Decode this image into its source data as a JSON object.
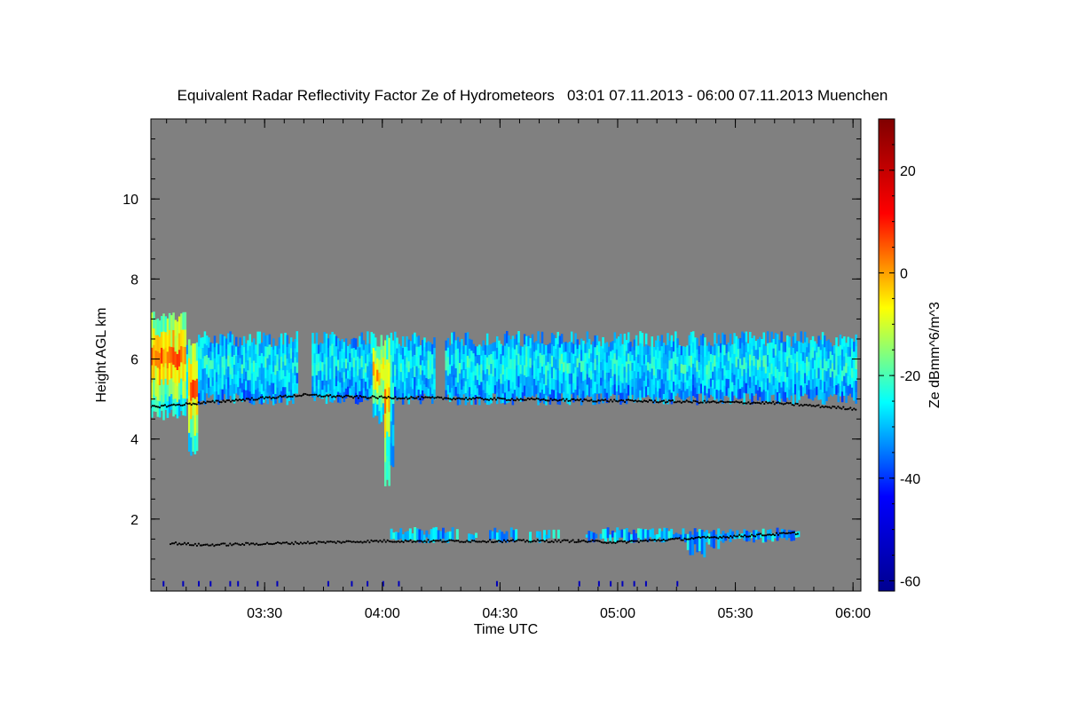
{
  "chart_data": {
    "type": "heatmap",
    "title": "Equivalent Radar Reflectivity Factor Ze of Hydrometeors   03:01 07.11.2013 - 06:00 07.11.2013 Muenchen",
    "xlabel": "Time UTC",
    "ylabel": "Height AGL km",
    "x_range_minutes": [
      181,
      362
    ],
    "x_ticks": [
      {
        "label": "03:30",
        "minutes": 210
      },
      {
        "label": "04:00",
        "minutes": 240
      },
      {
        "label": "04:30",
        "minutes": 270
      },
      {
        "label": "05:00",
        "minutes": 300
      },
      {
        "label": "05:30",
        "minutes": 330
      },
      {
        "label": "06:00",
        "minutes": 360
      }
    ],
    "ylim": [
      0.2,
      12
    ],
    "y_ticks": [
      2,
      4,
      6,
      8,
      10
    ],
    "colorbar": {
      "label": "Ze dBmm^6/m^3",
      "range": [
        -62,
        30
      ],
      "ticks": [
        20,
        0,
        -20,
        -40,
        -60
      ],
      "colormap": [
        "#00008f",
        "#0000ff",
        "#00ffff",
        "#ffff00",
        "#ff0000",
        "#800000"
      ]
    },
    "background_color": "#808080",
    "cloud_layers": [
      {
        "name": "upper cloud layer",
        "start_min": 181,
        "end_min": 361,
        "base_km": 5.0,
        "top_km": 6.5,
        "typical_ze_dbz": -25,
        "max_ze_dbz": 20
      },
      {
        "name": "low cloud layer",
        "start_min": 242,
        "end_min": 346,
        "base_km": 1.4,
        "top_km": 1.8,
        "typical_ze_dbz": -30,
        "max_ze_dbz": -20
      }
    ],
    "cloud_base_points": [
      {
        "minutes": 181,
        "km": 4.8
      },
      {
        "minutes": 200,
        "km": 4.95
      },
      {
        "minutes": 220,
        "km": 5.1
      },
      {
        "minutes": 233,
        "km": 5.05
      },
      {
        "minutes": 340,
        "km": 4.9
      },
      {
        "minutes": 361,
        "km": 4.75
      }
    ],
    "low_cloud_base_points": [
      {
        "minutes": 186,
        "km": 1.4
      },
      {
        "minutes": 194,
        "km": 1.35
      },
      {
        "minutes": 240,
        "km": 1.45
      },
      {
        "minutes": 290,
        "km": 1.45
      },
      {
        "minutes": 300,
        "km": 1.42
      },
      {
        "minutes": 346,
        "km": 1.65
      }
    ]
  }
}
